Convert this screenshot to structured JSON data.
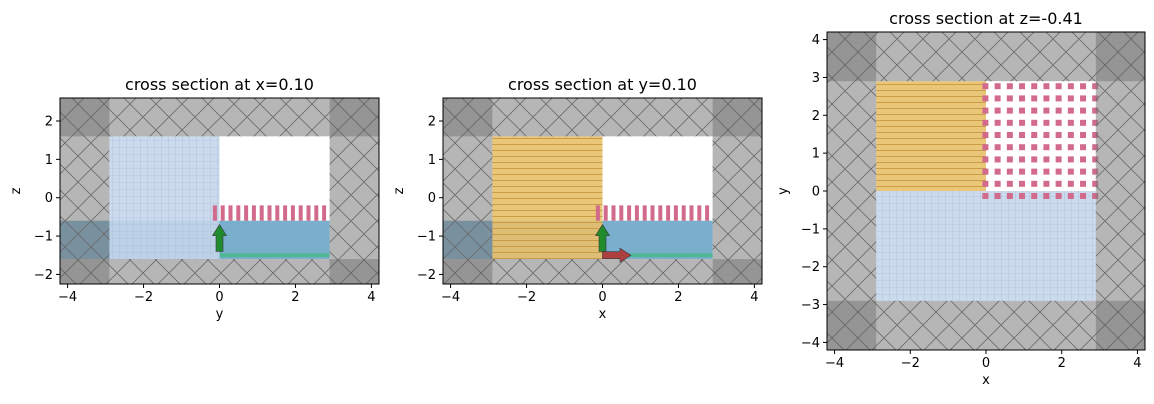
{
  "chart_data": [
    {
      "type": "cross_section",
      "title": "cross section at x=0.10",
      "xlabel": "y",
      "ylabel": "z",
      "xlim": [
        -4.2,
        4.2
      ],
      "ylim": [
        -2.25,
        2.6
      ],
      "xticks": [
        -4,
        -2,
        0,
        2,
        4
      ],
      "yticks": [
        -2,
        -1,
        0,
        1,
        2
      ],
      "xtick_labels": [
        "−4",
        "−2",
        "0",
        "2",
        "4"
      ],
      "ytick_labels": [
        "−2",
        "−1",
        "0",
        "1",
        "2"
      ],
      "pml": {
        "inner": [
          -2.9,
          2.9,
          -1.6,
          1.6
        ],
        "outer": [
          -4.2,
          4.2,
          -2.25,
          2.6
        ]
      },
      "regions": [
        {
          "name": "substrate",
          "x": [
            -4.2,
            2.9
          ],
          "y": [
            -1.6,
            -0.6
          ],
          "color": "#6aa5c6"
        },
        {
          "name": "thin-layer",
          "x": [
            0,
            2.9
          ],
          "y": [
            -1.55,
            -1.45
          ],
          "color": "#49b98d"
        },
        {
          "name": "monitor-grid",
          "x": [
            -2.9,
            0
          ],
          "y": [
            -1.6,
            1.6
          ],
          "color": "#c5d6ea",
          "pattern": "grid"
        },
        {
          "name": "grating",
          "x": [
            -0.2,
            2.9
          ],
          "y": [
            -0.6,
            -0.2
          ],
          "color": "#d16a8b",
          "pattern": "stripes-v"
        }
      ],
      "source_arrows": [
        {
          "x": 0,
          "y": -1.4,
          "dx": 0,
          "dy": 0.7,
          "color": "#1b8a26"
        }
      ]
    },
    {
      "type": "cross_section",
      "title": "cross section at y=0.10",
      "xlabel": "x",
      "ylabel": "z",
      "xlim": [
        -4.2,
        4.2
      ],
      "ylim": [
        -2.25,
        2.6
      ],
      "xticks": [
        -4,
        -2,
        0,
        2,
        4
      ],
      "yticks": [
        -2,
        -1,
        0,
        1,
        2
      ],
      "xtick_labels": [
        "−4",
        "−2",
        "0",
        "2",
        "4"
      ],
      "ytick_labels": [
        "−2",
        "−1",
        "0",
        "1",
        "2"
      ],
      "pml": {
        "inner": [
          -2.9,
          2.9,
          -1.6,
          1.6
        ],
        "outer": [
          -4.2,
          4.2,
          -2.25,
          2.6
        ]
      },
      "regions": [
        {
          "name": "substrate",
          "x": [
            -4.2,
            2.9
          ],
          "y": [
            -1.6,
            -0.6
          ],
          "color": "#6aa5c6"
        },
        {
          "name": "thin-layer",
          "x": [
            0,
            2.9
          ],
          "y": [
            -1.55,
            -1.45
          ],
          "color": "#49b98d"
        },
        {
          "name": "monitor-stripes",
          "x": [
            -2.9,
            0
          ],
          "y": [
            -1.6,
            1.6
          ],
          "color": "#e8c06a",
          "pattern": "stripes-h"
        },
        {
          "name": "grating",
          "x": [
            -0.2,
            2.9
          ],
          "y": [
            -0.6,
            -0.2
          ],
          "color": "#d16a8b",
          "pattern": "stripes-v"
        }
      ],
      "source_arrows": [
        {
          "x": 0,
          "y": -1.4,
          "dx": 0,
          "dy": 0.7,
          "color": "#1b8a26"
        },
        {
          "x": 0,
          "y": -1.5,
          "dx": 0.75,
          "dy": 0,
          "color": "#b23a3a"
        }
      ]
    },
    {
      "type": "cross_section",
      "title": "cross section at z=-0.41",
      "xlabel": "x",
      "ylabel": "y",
      "xlim": [
        -4.2,
        4.2
      ],
      "ylim": [
        -4.2,
        4.2
      ],
      "xticks": [
        -4,
        -2,
        0,
        2,
        4
      ],
      "yticks": [
        -4,
        -3,
        -2,
        -1,
        0,
        1,
        2,
        3,
        4
      ],
      "xtick_labels": [
        "−4",
        "−2",
        "0",
        "2",
        "4"
      ],
      "ytick_labels": [
        "−4",
        "−3",
        "−2",
        "−1",
        "0",
        "1",
        "2",
        "3",
        "4"
      ],
      "pml": {
        "inner": [
          -2.9,
          2.9,
          -2.9,
          2.9
        ],
        "outer": [
          -4.2,
          4.2,
          -4.2,
          4.2
        ]
      },
      "regions": [
        {
          "name": "monitor-stripes",
          "x": [
            -2.9,
            0
          ],
          "y": [
            0,
            2.9
          ],
          "color": "#e8c06a",
          "pattern": "stripes-h"
        },
        {
          "name": "monitor-grid",
          "x": [
            -2.9,
            2.9
          ],
          "y": [
            -2.9,
            0
          ],
          "color": "#c5d6ea",
          "pattern": "grid"
        },
        {
          "name": "grating",
          "x": [
            -0.2,
            2.9
          ],
          "y": [
            -0.2,
            2.9
          ],
          "color": "#d16a8b",
          "pattern": "dots"
        }
      ],
      "source_arrows": []
    }
  ]
}
